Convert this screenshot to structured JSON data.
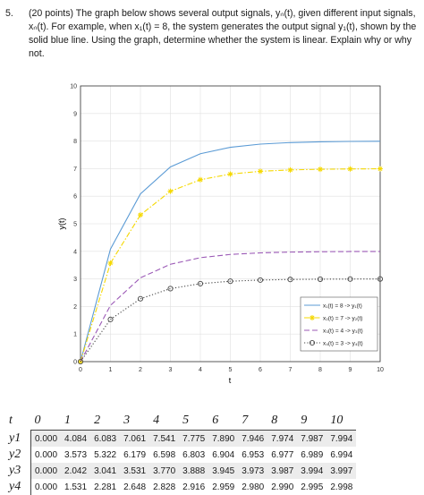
{
  "question": {
    "number": "5.",
    "line1": "(20 points) The graph below shows several output signals, yₙ(t), given different input signals,",
    "line2": "xₙ(t).  For example, when x₁(t) = 8, the system generates the output signal y₁(t), shown by the",
    "line3": "solid blue line.  Using the graph, determine whether the system is linear.  Explain why or why",
    "line4": "not."
  },
  "chart_data": {
    "type": "line",
    "xlabel": "t",
    "ylabel": "y(t)",
    "xlim": [
      0,
      10
    ],
    "ylim": [
      0,
      10
    ],
    "xticks": [
      "0",
      "1",
      "2",
      "3",
      "4",
      "5",
      "6",
      "7",
      "8",
      "9",
      "10"
    ],
    "yticks": [
      "0",
      "1",
      "2",
      "3",
      "4",
      "5",
      "6",
      "7",
      "8",
      "9",
      "10"
    ],
    "grid": true,
    "legend_position": "bottom-right",
    "x": [
      0,
      1,
      2,
      3,
      4,
      5,
      6,
      7,
      8,
      9,
      10
    ],
    "series": [
      {
        "name": "x₁(t) = 8 -> y₁(t)",
        "style": "solid",
        "color": "#5b9bd5",
        "marker": "none",
        "values": [
          0.0,
          4.084,
          6.083,
          7.061,
          7.541,
          7.775,
          7.89,
          7.946,
          7.974,
          7.987,
          7.994
        ]
      },
      {
        "name": "x₂(t) = 7 -> y₂(t)",
        "style": "dashdot",
        "color": "#f5d800",
        "marker": "star",
        "values": [
          0.0,
          3.573,
          5.322,
          6.179,
          6.598,
          6.803,
          6.904,
          6.953,
          6.977,
          6.989,
          6.994
        ]
      },
      {
        "name": "x₃(t) = 4 -> y₃(t)",
        "style": "dashed",
        "color": "#9b59b6",
        "marker": "none",
        "values": [
          0.0,
          2.042,
          3.041,
          3.531,
          3.77,
          3.888,
          3.945,
          3.973,
          3.987,
          3.994,
          3.997
        ]
      },
      {
        "name": "x₄(t) = 3 -> y₄(t)",
        "style": "dotted",
        "color": "#444444",
        "marker": "circle",
        "values": [
          0.0,
          1.531,
          2.281,
          2.648,
          2.828,
          2.916,
          2.959,
          2.98,
          2.99,
          2.995,
          2.998
        ]
      }
    ]
  },
  "table": {
    "header_label": "t",
    "columns": [
      "0",
      "1",
      "2",
      "3",
      "4",
      "5",
      "6",
      "7",
      "8",
      "9",
      "10"
    ],
    "rows": [
      {
        "label": "y1",
        "values": [
          "0.000",
          "4.084",
          "6.083",
          "7.061",
          "7.541",
          "7.775",
          "7.890",
          "7.946",
          "7.974",
          "7.987",
          "7.994"
        ]
      },
      {
        "label": "y2",
        "values": [
          "0.000",
          "3.573",
          "5.322",
          "6.179",
          "6.598",
          "6.803",
          "6.904",
          "6.953",
          "6.977",
          "6.989",
          "6.994"
        ]
      },
      {
        "label": "y3",
        "values": [
          "0.000",
          "2.042",
          "3.041",
          "3.531",
          "3.770",
          "3.888",
          "3.945",
          "3.973",
          "3.987",
          "3.994",
          "3.997"
        ]
      },
      {
        "label": "y4",
        "values": [
          "0.000",
          "1.531",
          "2.281",
          "2.648",
          "2.828",
          "2.916",
          "2.959",
          "2.980",
          "2.990",
          "2.995",
          "2.998"
        ]
      }
    ]
  }
}
